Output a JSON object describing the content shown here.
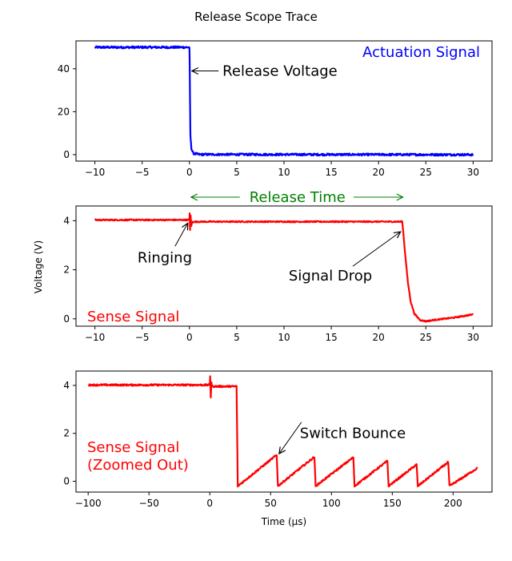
{
  "title": "Release Scope Trace",
  "chart_data": [
    {
      "type": "line",
      "name": "actuation",
      "xlim": [
        -12,
        32
      ],
      "ylim": [
        -3,
        53
      ],
      "xticks": [
        -10,
        -5,
        0,
        5,
        10,
        15,
        20,
        25,
        30
      ],
      "yticks": [
        0,
        20,
        40
      ],
      "grid": false,
      "color": "#0000ff",
      "series_points": [
        [
          -10,
          50
        ],
        [
          0,
          50
        ],
        [
          0.02,
          44
        ],
        [
          0.06,
          25
        ],
        [
          0.1,
          9
        ],
        [
          0.2,
          3
        ],
        [
          0.4,
          0.6
        ],
        [
          1,
          0.1
        ],
        [
          30,
          0
        ]
      ],
      "noise": 0.5,
      "label": "Actuation Signal",
      "label_color": "#0000ff",
      "annotations": [
        {
          "text": "Release Voltage",
          "xy": [
            0,
            39
          ],
          "xytext": [
            3.5,
            39
          ]
        }
      ]
    },
    {
      "type": "line",
      "name": "sense",
      "xlim": [
        -12,
        32
      ],
      "ylim": [
        -0.3,
        4.6
      ],
      "xticks": [
        -10,
        -5,
        0,
        5,
        10,
        15,
        20,
        25,
        30
      ],
      "yticks": [
        0,
        2,
        4
      ],
      "grid": false,
      "color": "#ff0000",
      "series_points": [
        [
          -10,
          4.03
        ],
        [
          0,
          4.03
        ],
        [
          0.02,
          4.3
        ],
        [
          0.06,
          3.6
        ],
        [
          0.12,
          4.2
        ],
        [
          0.2,
          3.8
        ],
        [
          0.3,
          3.95
        ],
        [
          1,
          3.96
        ],
        [
          22.5,
          3.96
        ],
        [
          22.6,
          3.6
        ],
        [
          22.8,
          2.7
        ],
        [
          23.1,
          1.5
        ],
        [
          23.4,
          0.7
        ],
        [
          23.8,
          0.2
        ],
        [
          24.4,
          -0.05
        ],
        [
          25.0,
          -0.1
        ],
        [
          26,
          -0.04
        ],
        [
          28,
          0.05
        ],
        [
          30,
          0.18
        ]
      ],
      "noise": 0.025,
      "label": "Sense Signal",
      "label_color": "#ff0000",
      "annotations": [
        {
          "text": "Ringing",
          "xy": [
            0,
            3.9
          ],
          "xytext": [
            -5.5,
            2.5
          ]
        },
        {
          "text": "Signal Drop",
          "xy": [
            22.5,
            3.55
          ],
          "xytext": [
            10.5,
            1.75
          ]
        }
      ],
      "span": {
        "text": "Release Time",
        "x0": 0,
        "x1": 22.5,
        "color": "#008000"
      }
    },
    {
      "type": "line",
      "name": "sense_zoomed",
      "xlim": [
        -110,
        232
      ],
      "ylim": [
        -0.45,
        4.6
      ],
      "xticks": [
        -100,
        -50,
        0,
        50,
        100,
        150,
        200
      ],
      "yticks": [
        0,
        2,
        4
      ],
      "grid": false,
      "color": "#ff0000",
      "series_points": [
        [
          -100,
          4.02
        ],
        [
          0,
          4.02
        ],
        [
          0.3,
          4.4
        ],
        [
          0.8,
          3.5
        ],
        [
          1.3,
          4.1
        ],
        [
          2,
          3.96
        ],
        [
          22,
          3.96
        ],
        [
          23,
          -0.2
        ],
        [
          55,
          1.1
        ],
        [
          56,
          -0.2
        ],
        [
          86,
          1.02
        ],
        [
          87,
          -0.2
        ],
        [
          118,
          1.0
        ],
        [
          119,
          -0.2
        ],
        [
          146,
          0.85
        ],
        [
          147,
          -0.2
        ],
        [
          170,
          0.7
        ],
        [
          171,
          -0.2
        ],
        [
          196,
          0.8
        ],
        [
          197,
          -0.2
        ],
        [
          220,
          0.55
        ]
      ],
      "noise": 0.035,
      "label": "Sense Signal\n(Zoomed Out)",
      "label_color": "#ff0000",
      "annotations": [
        {
          "text": "Switch Bounce",
          "xy": [
            55,
            1.15
          ],
          "xytext": [
            74,
            2.0
          ]
        }
      ],
      "xlabel": "Time (μs)"
    }
  ],
  "ylabel": "Voltage (V)"
}
